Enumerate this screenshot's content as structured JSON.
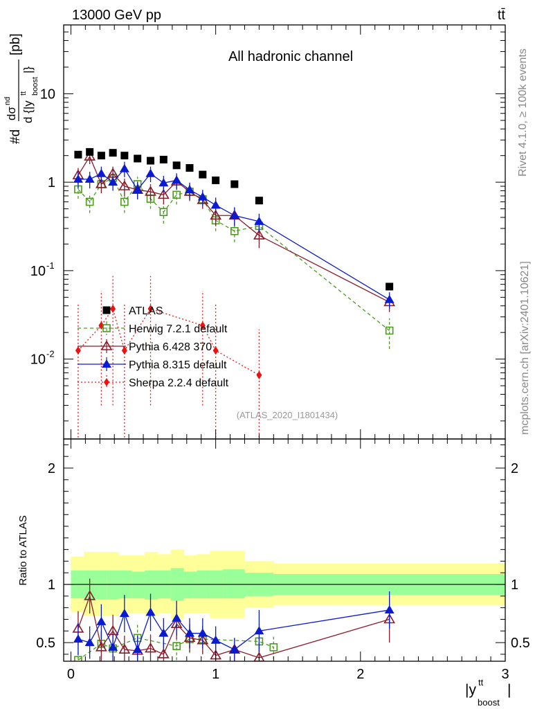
{
  "header": {
    "left": "13000 GeV pp",
    "right": "tt̄",
    "side_top": "Rivet 4.1.0, ≥ 100k events",
    "side_bottom": "mcplots.cern.ch [arXiv:2401.10621]"
  },
  "colors": {
    "atlas": "#000000",
    "herwig": "#4a9a1e",
    "pythia6": "#8b1a2a",
    "pythia8": "#0a1ad0",
    "sherpa": "#ee1111",
    "band_inner": "#99ff99",
    "band_outer": "#ffff99"
  },
  "chart_data": [
    {
      "type": "scatter",
      "title": "All hadronic channel",
      "watermark": "(ATLAS_2020_I1801434)",
      "xlabel": "|y_boost^tt|",
      "ylabel": "#d dσ^nd / d{|y_boost^tt|} [pb]",
      "yscale": "log",
      "xlim": [
        -0.05,
        3.0
      ],
      "ylim": [
        0.00125,
        60
      ],
      "yticks": [
        {
          "value": 0.01,
          "label": "10^-2"
        },
        {
          "value": 0.1,
          "label": "10^-1"
        },
        {
          "value": 1,
          "label": "1"
        },
        {
          "value": 10,
          "label": "10"
        }
      ],
      "xticks": [
        0,
        1,
        2,
        3
      ],
      "legend": {
        "position": "lower-left",
        "entries": [
          "ATLAS",
          "Herwig 7.2.1 default",
          "Pythia 6.428 370",
          "Pythia 8.315 default",
          "Sherpa 2.2.4 default"
        ]
      },
      "series": [
        {
          "name": "ATLAS",
          "marker": "square-filled",
          "line": "none",
          "x": [
            0.05,
            0.13,
            0.21,
            0.29,
            0.37,
            0.46,
            0.55,
            0.64,
            0.73,
            0.82,
            0.91,
            1.0,
            1.13,
            1.3,
            2.2
          ],
          "y": [
            2.05,
            2.2,
            2.0,
            2.15,
            2.0,
            1.85,
            1.75,
            1.8,
            1.55,
            1.45,
            1.22,
            1.05,
            0.95,
            0.62,
            0.066
          ]
        },
        {
          "name": "Herwig 7.2.1 default",
          "marker": "square-open",
          "line": "dashed",
          "x": [
            0.05,
            0.13,
            0.21,
            0.29,
            0.37,
            0.46,
            0.55,
            0.64,
            0.73,
            0.82,
            0.91,
            1.0,
            1.13,
            1.3,
            2.2
          ],
          "y": [
            0.83,
            0.6,
            0.95,
            1.12,
            0.6,
            0.95,
            0.65,
            0.46,
            0.72,
            0.78,
            0.64,
            0.37,
            0.28,
            0.32,
            0.021
          ],
          "err": [
            0.18,
            0.15,
            0.2,
            0.22,
            0.15,
            0.2,
            0.15,
            0.12,
            0.16,
            0.17,
            0.14,
            0.09,
            0.07,
            0.08,
            0.008
          ]
        },
        {
          "name": "Pythia 6.428 370",
          "marker": "triangle-open",
          "line": "solid",
          "x": [
            0.05,
            0.13,
            0.21,
            0.29,
            0.37,
            0.46,
            0.55,
            0.64,
            0.73,
            0.82,
            0.91,
            1.0,
            1.13,
            1.3,
            2.2
          ],
          "y": [
            1.2,
            1.95,
            0.95,
            1.25,
            0.9,
            0.82,
            0.78,
            0.72,
            1.02,
            0.78,
            0.63,
            0.42,
            0.42,
            0.25,
            0.044
          ],
          "err": [
            0.25,
            0.35,
            0.2,
            0.25,
            0.2,
            0.18,
            0.17,
            0.16,
            0.2,
            0.16,
            0.13,
            0.1,
            0.1,
            0.07,
            0.01
          ]
        },
        {
          "name": "Pythia 8.315 default",
          "marker": "triangle-filled",
          "line": "solid",
          "x": [
            0.05,
            0.13,
            0.21,
            0.29,
            0.37,
            0.46,
            0.55,
            0.64,
            0.73,
            0.82,
            0.91,
            1.0,
            1.13,
            1.3,
            2.2
          ],
          "y": [
            1.08,
            1.08,
            1.25,
            1.0,
            1.42,
            0.82,
            1.25,
            0.98,
            1.05,
            0.82,
            0.68,
            0.55,
            0.42,
            0.36,
            0.047
          ],
          "err": [
            0.23,
            0.23,
            0.25,
            0.2,
            0.28,
            0.18,
            0.25,
            0.2,
            0.21,
            0.17,
            0.14,
            0.12,
            0.1,
            0.08,
            0.01
          ]
        },
        {
          "name": "Sherpa 2.2.4 default",
          "marker": "diamond-filled",
          "line": "dotted",
          "x": [
            0.05,
            0.21,
            0.29,
            0.37,
            0.55,
            0.91,
            1.0,
            1.3
          ],
          "y": [
            0.0125,
            0.024,
            0.037,
            0.0125,
            0.037,
            0.024,
            0.0125,
            0.0066
          ],
          "err_low": [
            0.0112,
            0.021,
            0.034,
            0.0112,
            0.034,
            0.021,
            0.0112,
            0.0053
          ],
          "err_high": [
            0.03,
            0.035,
            0.05,
            0.03,
            0.05,
            0.035,
            0.03,
            0.015
          ]
        }
      ]
    },
    {
      "type": "scatter",
      "ylabel": "Ratio to ATLAS",
      "xlabel": "|y_boost^tt|",
      "xlim": [
        -0.05,
        3.0
      ],
      "ylim": [
        0.34,
        2.25
      ],
      "yticks": [
        0.5,
        1,
        2
      ],
      "xticks": [
        0,
        1,
        2,
        3
      ],
      "reference_line": 1,
      "bands": {
        "edges": [
          0.0,
          0.09,
          0.17,
          0.25,
          0.33,
          0.42,
          0.51,
          0.6,
          0.69,
          0.78,
          0.87,
          0.96,
          1.05,
          1.2,
          1.4,
          3.0
        ],
        "inner_low": [
          0.88,
          0.86,
          0.87,
          0.87,
          0.88,
          0.88,
          0.87,
          0.88,
          0.86,
          0.88,
          0.88,
          0.88,
          0.88,
          0.9,
          0.91
        ],
        "inner_high": [
          1.12,
          1.12,
          1.12,
          1.12,
          1.12,
          1.11,
          1.12,
          1.12,
          1.14,
          1.11,
          1.12,
          1.12,
          1.13,
          1.1,
          1.09
        ],
        "outer_low": [
          0.76,
          0.73,
          0.73,
          0.73,
          0.75,
          0.75,
          0.73,
          0.75,
          0.7,
          0.75,
          0.75,
          0.71,
          0.71,
          0.8,
          0.82
        ],
        "outer_high": [
          1.24,
          1.28,
          1.28,
          1.28,
          1.25,
          1.25,
          1.28,
          1.26,
          1.3,
          1.25,
          1.26,
          1.29,
          1.29,
          1.2,
          1.18
        ]
      },
      "series": [
        {
          "name": "Herwig 7.2.1 default",
          "marker": "square-open",
          "line": "dashed",
          "x": [
            0.05,
            0.21,
            0.29,
            0.46,
            0.73,
            0.82,
            0.91,
            1.3,
            1.4
          ],
          "y": [
            0.35,
            0.49,
            0.45,
            0.54,
            0.47,
            0.53,
            0.53,
            0.51,
            0.46
          ],
          "err": [
            0.12,
            0.12,
            0.12,
            0.12,
            0.12,
            0.12,
            0.12,
            0.15,
            0.1
          ]
        },
        {
          "name": "Pythia 6.428 370",
          "marker": "triangle-open",
          "line": "solid",
          "x": [
            0.05,
            0.13,
            0.21,
            0.29,
            0.37,
            0.46,
            0.55,
            0.64,
            0.73,
            0.82,
            0.91,
            1.0,
            1.13,
            1.3,
            2.2
          ],
          "y": [
            0.62,
            0.9,
            0.46,
            0.6,
            0.44,
            0.43,
            0.45,
            0.4,
            0.66,
            0.54,
            0.52,
            0.39,
            0.44,
            0.37,
            0.7
          ],
          "err": [
            0.15,
            0.15,
            0.13,
            0.14,
            0.12,
            0.12,
            0.12,
            0.12,
            0.13,
            0.12,
            0.12,
            0.1,
            0.1,
            0.12,
            0.2
          ]
        },
        {
          "name": "Pythia 8.315 default",
          "marker": "triangle-filled",
          "line": "solid",
          "x": [
            0.05,
            0.13,
            0.21,
            0.29,
            0.37,
            0.46,
            0.55,
            0.64,
            0.73,
            0.82,
            0.91,
            1.0,
            1.13,
            1.3,
            2.2
          ],
          "y": [
            0.53,
            0.5,
            0.68,
            0.46,
            0.75,
            0.44,
            0.76,
            0.58,
            0.71,
            0.58,
            0.58,
            0.52,
            0.44,
            0.6,
            0.78
          ],
          "err": [
            0.14,
            0.14,
            0.15,
            0.12,
            0.16,
            0.12,
            0.16,
            0.13,
            0.15,
            0.13,
            0.13,
            0.12,
            0.1,
            0.18,
            0.16
          ]
        }
      ]
    }
  ]
}
